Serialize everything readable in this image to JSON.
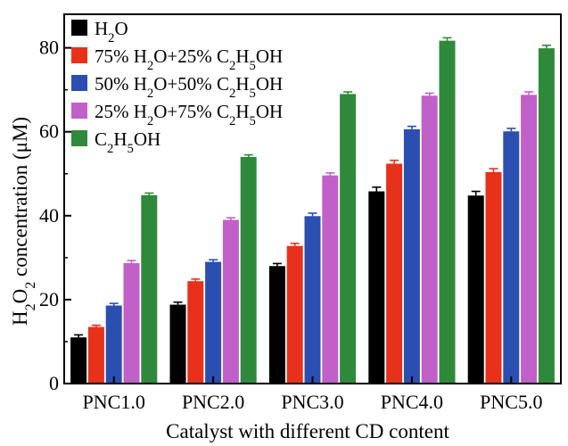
{
  "chart_data": {
    "type": "bar",
    "title": "",
    "xlabel": "Catalyst with different CD content",
    "ylabel": "H2O2 concentration (μM)",
    "ylabel_parts": {
      "h": "H",
      "sub1": "2",
      "o": "O",
      "sub2": "2",
      "rest": " concentration (μM)"
    },
    "ylim": [
      0,
      88
    ],
    "yticks": [
      0,
      20,
      40,
      60,
      80
    ],
    "categories": [
      "PNC1.0",
      "PNC2.0",
      "PNC3.0",
      "PNC4.0",
      "PNC5.0"
    ],
    "grid": false,
    "legend_position": "top-left",
    "series": [
      {
        "name": "H2O",
        "color": "#000000",
        "legend_parts": [
          [
            "H",
            ""
          ],
          [
            "2",
            "sub"
          ],
          [
            "O",
            ""
          ]
        ],
        "values": [
          11.0,
          18.8,
          28.0,
          45.8,
          44.8
        ],
        "errors": [
          0.6,
          0.6,
          0.6,
          1.0,
          1.0
        ]
      },
      {
        "name": "75% H2O+25% C2H5OH",
        "color": "#e8311a",
        "legend_parts": [
          [
            "75% H",
            ""
          ],
          [
            "2",
            "sub"
          ],
          [
            "O+25% C",
            ""
          ],
          [
            "2",
            "sub"
          ],
          [
            "H",
            ""
          ],
          [
            "5",
            "sub"
          ],
          [
            "OH",
            ""
          ]
        ],
        "values": [
          13.5,
          24.4,
          32.8,
          52.4,
          50.4
        ],
        "errors": [
          0.4,
          0.5,
          0.6,
          0.8,
          0.8
        ]
      },
      {
        "name": "50% H2O+50% C2H5OH",
        "color": "#2a4fb0",
        "legend_parts": [
          [
            "50% H",
            ""
          ],
          [
            "2",
            "sub"
          ],
          [
            "O+50% C",
            ""
          ],
          [
            "2",
            "sub"
          ],
          [
            "H",
            ""
          ],
          [
            "5",
            "sub"
          ],
          [
            "OH",
            ""
          ]
        ],
        "values": [
          18.6,
          29.0,
          39.9,
          60.6,
          60.1
        ],
        "errors": [
          0.5,
          0.5,
          0.7,
          0.7,
          0.7
        ]
      },
      {
        "name": "25% H2O+75% C2H5OH",
        "color": "#c060c8",
        "legend_parts": [
          [
            "25% H",
            ""
          ],
          [
            "2",
            "sub"
          ],
          [
            "O+75% C",
            ""
          ],
          [
            "2",
            "sub"
          ],
          [
            "H",
            ""
          ],
          [
            "5",
            "sub"
          ],
          [
            "OH",
            ""
          ]
        ],
        "values": [
          28.7,
          39.0,
          49.6,
          68.6,
          68.8
        ],
        "errors": [
          0.6,
          0.5,
          0.6,
          0.6,
          0.7
        ]
      },
      {
        "name": "C2H5OH",
        "color": "#2e8a3a",
        "legend_parts": [
          [
            "C",
            ""
          ],
          [
            "2",
            "sub"
          ],
          [
            "H",
            ""
          ],
          [
            "5",
            "sub"
          ],
          [
            "OH",
            ""
          ]
        ],
        "values": [
          44.9,
          54.0,
          69.0,
          81.7,
          79.9
        ],
        "errors": [
          0.5,
          0.5,
          0.5,
          0.7,
          0.7
        ]
      }
    ]
  }
}
